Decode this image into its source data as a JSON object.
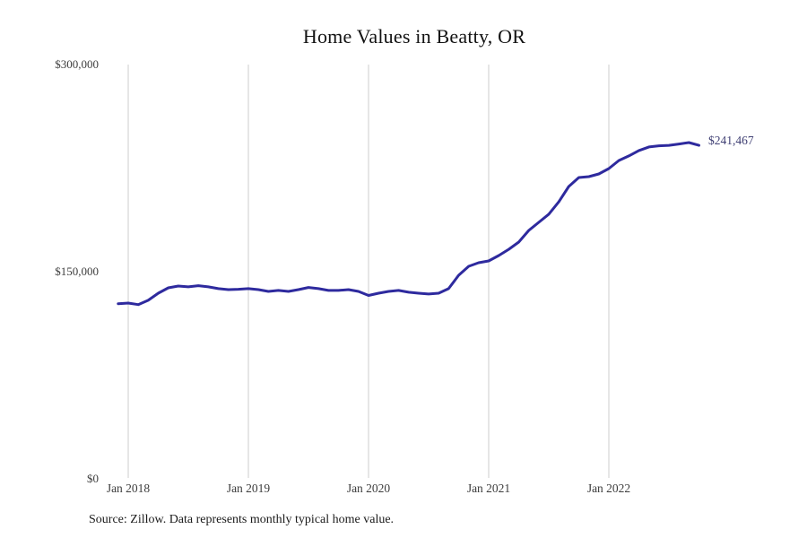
{
  "page": {
    "title": "Home Values in Beatty, OR",
    "source_note": "Source: Zillow. Data represents monthly typical home value."
  },
  "chart_data": {
    "type": "line",
    "title": "Home Values in Beatty, OR",
    "series_name": "Monthly typical home value",
    "x": [
      "Dec 2017",
      "Jan 2018",
      "Feb 2018",
      "Mar 2018",
      "Apr 2018",
      "May 2018",
      "Jun 2018",
      "Jul 2018",
      "Aug 2018",
      "Sep 2018",
      "Oct 2018",
      "Nov 2018",
      "Dec 2018",
      "Jan 2019",
      "Feb 2019",
      "Mar 2019",
      "Apr 2019",
      "May 2019",
      "Jun 2019",
      "Jul 2019",
      "Aug 2019",
      "Sep 2019",
      "Oct 2019",
      "Nov 2019",
      "Dec 2019",
      "Jan 2020",
      "Feb 2020",
      "Mar 2020",
      "Apr 2020",
      "May 2020",
      "Jun 2020",
      "Jul 2020",
      "Aug 2020",
      "Sep 2020",
      "Oct 2020",
      "Nov 2020",
      "Dec 2020",
      "Jan 2021",
      "Feb 2021",
      "Mar 2021",
      "Apr 2021",
      "May 2021",
      "Jun 2021",
      "Jul 2021",
      "Aug 2021",
      "Sep 2021",
      "Oct 2021",
      "Nov 2021",
      "Dec 2021",
      "Jan 2022",
      "Feb 2022",
      "Mar 2022",
      "Apr 2022",
      "May 2022",
      "Jun 2022",
      "Jul 2022",
      "Aug 2022",
      "Sep 2022",
      "Oct 2022"
    ],
    "values": [
      126800,
      127300,
      126200,
      129300,
      134400,
      138300,
      139600,
      139000,
      139900,
      139000,
      137700,
      137000,
      137300,
      137700,
      137000,
      135700,
      136400,
      135700,
      137000,
      138600,
      137700,
      136400,
      136400,
      137000,
      135700,
      132800,
      134400,
      135700,
      136400,
      135100,
      134400,
      133800,
      134400,
      137700,
      147400,
      153900,
      156500,
      157800,
      161700,
      166200,
      171400,
      179900,
      185700,
      191600,
      200600,
      211700,
      218200,
      218800,
      220800,
      224700,
      230500,
      233800,
      237700,
      240300,
      241200,
      241500,
      242500,
      243500,
      241467
    ],
    "end_label": "$241,467",
    "last_value": 241467,
    "y_ticks": [
      {
        "label": "$300,000",
        "value": 300000
      },
      {
        "label": "$150,000",
        "value": 150000
      },
      {
        "label": "$0",
        "value": 0
      }
    ],
    "x_ticks": [
      "Jan 2018",
      "Jan 2019",
      "Jan 2020",
      "Jan 2021",
      "Jan 2022"
    ],
    "ylim": [
      0,
      300000
    ],
    "grid": "vertical-only",
    "legend": "none",
    "line_color": "#2e2a9e",
    "grid_color": "#cccccc",
    "end_label_color": "#3f3f73"
  }
}
